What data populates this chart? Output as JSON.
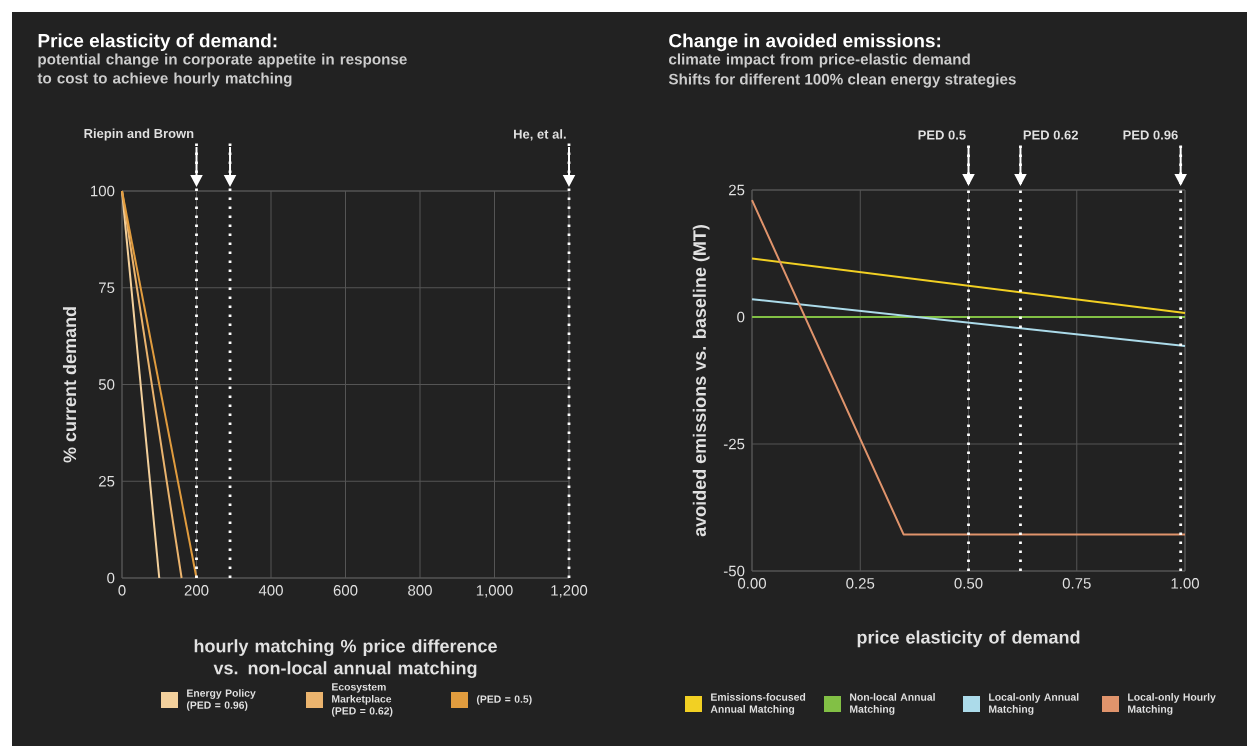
{
  "chart_data": [
    {
      "type": "line",
      "title": "Price elasticity of demand:",
      "subtitle": "potential change in corporate appetite in response to cost to achieve hourly matching",
      "xlabel": "hourly matching % price difference vs. non-local annual matching",
      "ylabel": "% current demand",
      "xlim": [
        0,
        1200
      ],
      "ylim": [
        0,
        100
      ],
      "xticks": [
        0,
        200,
        400,
        600,
        800,
        {
          "value": 1000,
          "label": "1,000"
        },
        {
          "value": 1200,
          "label": "1,200"
        }
      ],
      "yticks": [
        0,
        25,
        50,
        75,
        100
      ],
      "grid": true,
      "legend": "bottom",
      "marker": "none",
      "line_style": "solid",
      "series": [
        {
          "name": "Energy Policy (PED = 0.96)",
          "color": "#f3d09c",
          "x": [
            0,
            100
          ],
          "values": [
            100,
            0
          ]
        },
        {
          "name": "Ecosystem Marketplace (PED = 0.62)",
          "color": "#ebb46e",
          "x": [
            0,
            160
          ],
          "values": [
            100,
            0
          ]
        },
        {
          "name": "(PED = 0.5)",
          "color": "#e19c3e",
          "x": [
            0,
            200
          ],
          "values": [
            100,
            0
          ]
        }
      ],
      "ref_lines": [
        {
          "axis": "x",
          "value": 200,
          "label": "Riepin and Brown",
          "color": "#ffffff",
          "line_style": "dotted"
        },
        {
          "axis": "x",
          "value": 290,
          "color": "#ffffff",
          "line_style": "dotted"
        },
        {
          "axis": "x",
          "value": 1200,
          "label": "He, et al.",
          "color": "#ffffff",
          "line_style": "dotted"
        }
      ]
    },
    {
      "type": "line",
      "title": "Change in avoided emissions:",
      "subtitle": "climate impact from price-elastic demand",
      "annotations": [
        "Shifts for different 100% clean energy strategies"
      ],
      "xlabel": "price elasticity of demand",
      "ylabel": "avoided emissions vs. baseline (MT)",
      "xlim": [
        0,
        1
      ],
      "ylim": [
        -50,
        25
      ],
      "xticks": [
        {
          "value": 0,
          "label": "0.00"
        },
        {
          "value": 0.25,
          "label": "0.25"
        },
        {
          "value": 0.5,
          "label": "0.50"
        },
        {
          "value": 0.75,
          "label": "0.75"
        },
        {
          "value": 1,
          "label": "1.00"
        }
      ],
      "yticks": [
        -50,
        -25,
        0,
        25
      ],
      "grid": true,
      "legend": "bottom",
      "marker": "none",
      "line_style": "solid",
      "series": [
        {
          "name": "Emissions-focused Annual Matching",
          "color": "#f2d023",
          "x": [
            0,
            1
          ],
          "values": [
            11.5,
            0.8
          ]
        },
        {
          "name": "Non-local Annual Matching",
          "color": "#82c045",
          "x": [
            0,
            1
          ],
          "values": [
            0,
            0
          ]
        },
        {
          "name": "Local-only Annual Matching",
          "color": "#acdbea",
          "x": [
            0,
            1
          ],
          "values": [
            3.5,
            -5.7
          ]
        },
        {
          "name": "Local-only Hourly Matching",
          "color": "#e0946c",
          "x": [
            0,
            0.35,
            1
          ],
          "values": [
            23,
            -42.8,
            -42.8
          ]
        }
      ],
      "ref_lines": [
        {
          "axis": "x",
          "value": 0.5,
          "label": "PED 0.5",
          "color": "#ffffff",
          "line_style": "dotted"
        },
        {
          "axis": "x",
          "value": 0.62,
          "label": "PED 0.62",
          "color": "#ffffff",
          "line_style": "dotted"
        },
        {
          "axis": "x",
          "value": 0.99,
          "label": "PED 0.96",
          "color": "#ffffff",
          "line_style": "dotted"
        }
      ]
    }
  ]
}
